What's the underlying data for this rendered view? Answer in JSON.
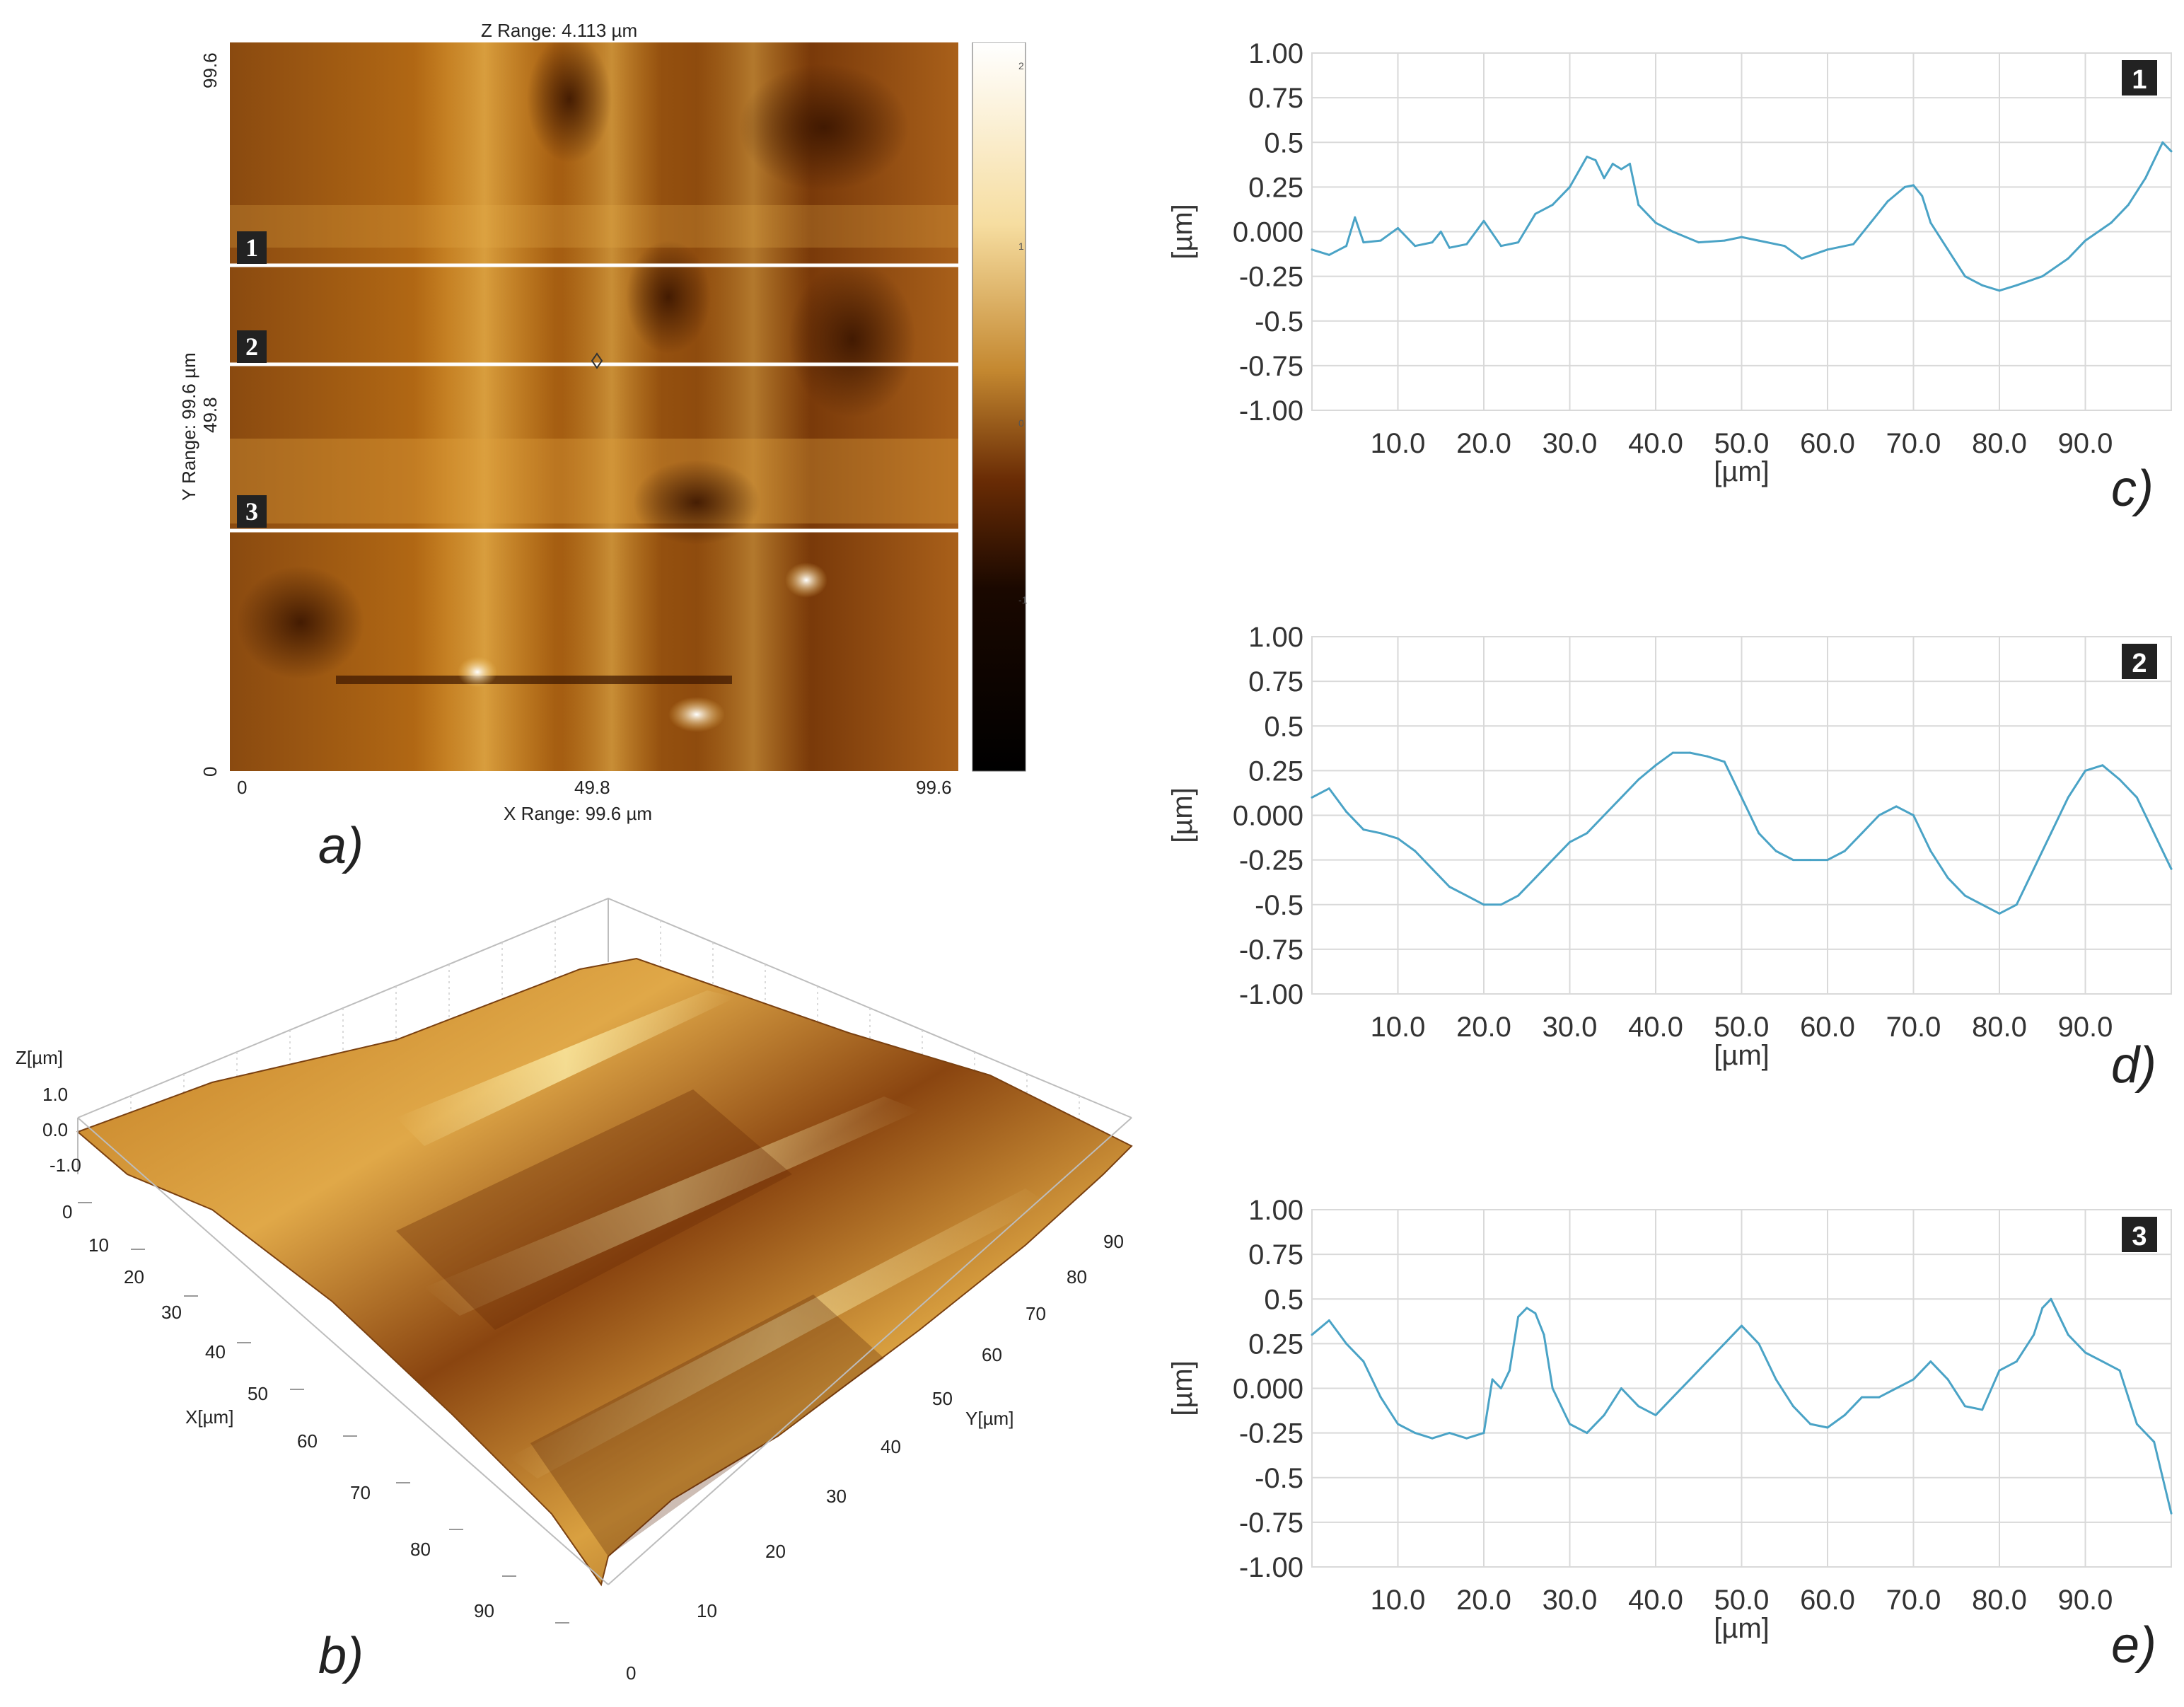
{
  "panels": {
    "a": "a)",
    "b": "b)",
    "c": "c)",
    "d": "d)",
    "e": "e)"
  },
  "afm_map": {
    "z_range": "Z Range:  4.113 µm",
    "x_range": "X Range:  99.6 µm",
    "y_range": "Y Range:  99.6 µm",
    "x_ticks": [
      "0",
      "49.8",
      "99.6"
    ],
    "y_ticks": [
      "0",
      "49.8",
      "99.6"
    ],
    "line_markers": [
      "1",
      "2",
      "3"
    ],
    "colorbar_ticks": [
      "2",
      "1",
      "0",
      "-1"
    ]
  },
  "surface_3d": {
    "z_label": "Z[µm]",
    "z_ticks": [
      "1.0",
      "0.0",
      "-1.0"
    ],
    "x_label": "X[µm]",
    "x_ticks": [
      "0",
      "10",
      "20",
      "30",
      "40",
      "50",
      "60",
      "70",
      "80",
      "90"
    ],
    "y_label": "Y[µm]",
    "y_ticks": [
      "0",
      "10",
      "20",
      "30",
      "40",
      "50",
      "60",
      "70",
      "80",
      "90"
    ]
  },
  "colors": {
    "profile_line": "#4aa3c6",
    "grid": "#d9d9d9",
    "badge_bg": "#222222"
  },
  "chart_data": [
    {
      "type": "line",
      "id": "c",
      "badge": "1",
      "ylabel": "[µm]",
      "xlabel": "[µm]",
      "xlim": [
        0,
        100
      ],
      "ylim": [
        -1.0,
        1.0
      ],
      "yticks": [
        "1.00",
        "0.75",
        "0.5",
        "0.25",
        "0.000",
        "-0.25",
        "-0.5",
        "-0.75",
        "-1.00"
      ],
      "xticks": [
        "10.0",
        "20.0",
        "30.0",
        "40.0",
        "50.0",
        "60.0",
        "70.0",
        "80.0",
        "90.0"
      ],
      "x": [
        0,
        2,
        4,
        5,
        6,
        8,
        10,
        12,
        14,
        15,
        16,
        18,
        20,
        22,
        24,
        26,
        28,
        30,
        32,
        33,
        34,
        35,
        36,
        37,
        38,
        40,
        42,
        45,
        48,
        50,
        52,
        55,
        57,
        60,
        63,
        65,
        67,
        69,
        70,
        71,
        72,
        74,
        76,
        78,
        80,
        82,
        85,
        88,
        90,
        93,
        95,
        97,
        99,
        100
      ],
      "y": [
        -0.1,
        -0.13,
        -0.08,
        0.08,
        -0.06,
        -0.05,
        0.02,
        -0.08,
        -0.06,
        0.0,
        -0.09,
        -0.07,
        0.06,
        -0.08,
        -0.06,
        0.1,
        0.15,
        0.25,
        0.42,
        0.4,
        0.3,
        0.38,
        0.35,
        0.38,
        0.15,
        0.05,
        0.0,
        -0.06,
        -0.05,
        -0.03,
        -0.05,
        -0.08,
        -0.15,
        -0.1,
        -0.07,
        0.05,
        0.17,
        0.25,
        0.26,
        0.2,
        0.05,
        -0.1,
        -0.25,
        -0.3,
        -0.33,
        -0.3,
        -0.25,
        -0.15,
        -0.05,
        0.05,
        0.15,
        0.3,
        0.5,
        0.45
      ]
    },
    {
      "type": "line",
      "id": "d",
      "badge": "2",
      "ylabel": "[µm]",
      "xlabel": "[µm]",
      "xlim": [
        0,
        100
      ],
      "ylim": [
        -1.0,
        1.0
      ],
      "yticks": [
        "1.00",
        "0.75",
        "0.5",
        "0.25",
        "0.000",
        "-0.25",
        "-0.5",
        "-0.75",
        "-1.00"
      ],
      "xticks": [
        "10.0",
        "20.0",
        "30.0",
        "40.0",
        "50.0",
        "60.0",
        "70.0",
        "80.0",
        "90.0"
      ],
      "x": [
        0,
        2,
        4,
        6,
        8,
        10,
        12,
        14,
        16,
        18,
        20,
        22,
        24,
        26,
        28,
        30,
        32,
        34,
        36,
        38,
        40,
        42,
        44,
        46,
        48,
        50,
        52,
        54,
        56,
        58,
        60,
        62,
        64,
        66,
        68,
        70,
        72,
        74,
        76,
        78,
        80,
        82,
        84,
        86,
        88,
        90,
        92,
        94,
        96,
        98,
        100
      ],
      "y": [
        0.1,
        0.15,
        0.02,
        -0.08,
        -0.1,
        -0.13,
        -0.2,
        -0.3,
        -0.4,
        -0.45,
        -0.5,
        -0.5,
        -0.45,
        -0.35,
        -0.25,
        -0.15,
        -0.1,
        0.0,
        0.1,
        0.2,
        0.28,
        0.35,
        0.35,
        0.33,
        0.3,
        0.1,
        -0.1,
        -0.2,
        -0.25,
        -0.25,
        -0.25,
        -0.2,
        -0.1,
        0.0,
        0.05,
        0.0,
        -0.2,
        -0.35,
        -0.45,
        -0.5,
        -0.55,
        -0.5,
        -0.3,
        -0.1,
        0.1,
        0.25,
        0.28,
        0.2,
        0.1,
        -0.1,
        -0.3
      ]
    },
    {
      "type": "line",
      "id": "e",
      "badge": "3",
      "ylabel": "[µm]",
      "xlabel": "[µm]",
      "xlim": [
        0,
        100
      ],
      "ylim": [
        -1.0,
        1.0
      ],
      "yticks": [
        "1.00",
        "0.75",
        "0.5",
        "0.25",
        "0.000",
        "-0.25",
        "-0.5",
        "-0.75",
        "-1.00"
      ],
      "xticks": [
        "10.0",
        "20.0",
        "30.0",
        "40.0",
        "50.0",
        "60.0",
        "70.0",
        "80.0",
        "90.0"
      ],
      "x": [
        0,
        2,
        4,
        6,
        8,
        10,
        12,
        14,
        16,
        18,
        20,
        21,
        22,
        23,
        24,
        25,
        26,
        27,
        28,
        30,
        32,
        34,
        36,
        38,
        40,
        42,
        44,
        46,
        48,
        50,
        52,
        54,
        56,
        58,
        60,
        62,
        64,
        66,
        68,
        70,
        72,
        74,
        76,
        78,
        80,
        82,
        84,
        85,
        86,
        88,
        90,
        92,
        94,
        96,
        98,
        100
      ],
      "y": [
        0.3,
        0.38,
        0.25,
        0.15,
        -0.05,
        -0.2,
        -0.25,
        -0.28,
        -0.25,
        -0.28,
        -0.25,
        0.05,
        0.0,
        0.1,
        0.4,
        0.45,
        0.42,
        0.3,
        0.0,
        -0.2,
        -0.25,
        -0.15,
        0.0,
        -0.1,
        -0.15,
        -0.05,
        0.05,
        0.15,
        0.25,
        0.35,
        0.25,
        0.05,
        -0.1,
        -0.2,
        -0.22,
        -0.15,
        -0.05,
        -0.05,
        0.0,
        0.05,
        0.15,
        0.05,
        -0.1,
        -0.12,
        0.1,
        0.15,
        0.3,
        0.45,
        0.5,
        0.3,
        0.2,
        0.15,
        0.1,
        -0.2,
        -0.3,
        -0.7
      ]
    }
  ]
}
